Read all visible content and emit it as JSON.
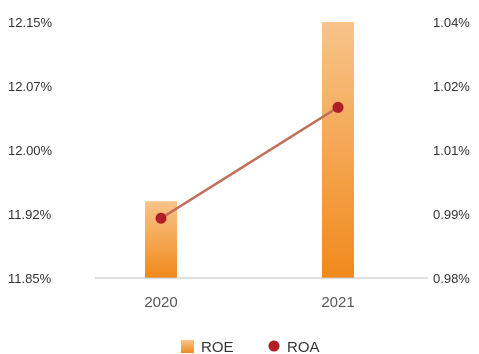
{
  "chart_data": {
    "type": "bar",
    "categories": [
      "2020",
      "2021"
    ],
    "series": [
      {
        "name": "ROE",
        "kind": "bar",
        "axis": "left",
        "values": [
          11.94,
          12.15
        ],
        "color": "#f08a1c"
      },
      {
        "name": "ROA",
        "kind": "line",
        "axis": "right",
        "values": [
          0.994,
          1.02
        ],
        "color": "#b01f24",
        "line_color": "#c0705a"
      }
    ],
    "y_left": {
      "ticks": [
        "12.15%",
        "12.07%",
        "12.00%",
        "11.92%",
        "11.85%"
      ],
      "ylim": [
        11.85,
        12.15
      ]
    },
    "y_right": {
      "ticks": [
        "1.04%",
        "1.02%",
        "1.01%",
        "0.99%",
        "0.98%"
      ],
      "ylim": [
        0.98,
        1.04
      ]
    },
    "legend": {
      "position": "bottom",
      "items": [
        "ROE",
        "ROA"
      ]
    },
    "grid": false,
    "title": "",
    "xlabel": "",
    "ylabel": ""
  }
}
